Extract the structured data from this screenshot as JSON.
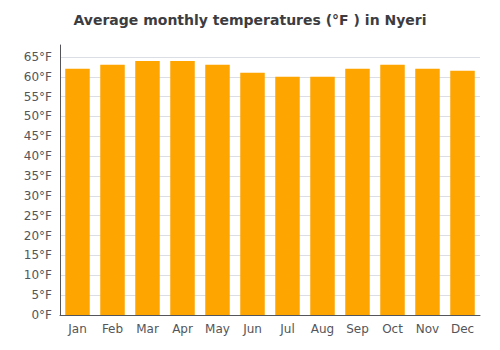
{
  "chart_data": {
    "type": "bar",
    "title": "Average monthly temperatures (°F ) in Nyeri",
    "categories": [
      "Jan",
      "Feb",
      "Mar",
      "Apr",
      "May",
      "Jun",
      "Jul",
      "Aug",
      "Sep",
      "Oct",
      "Nov",
      "Dec"
    ],
    "values": [
      62,
      63,
      64,
      64,
      63,
      61,
      60,
      60,
      62,
      63,
      62,
      61.5
    ],
    "color": "#FFA500",
    "ylim": [
      0,
      68
    ],
    "yticks": [
      {
        "value": 0,
        "label": "0°F"
      },
      {
        "value": 5,
        "label": "5°F"
      },
      {
        "value": 10,
        "label": "10°F"
      },
      {
        "value": 15,
        "label": "15°F"
      },
      {
        "value": 20,
        "label": "20°F"
      },
      {
        "value": 25,
        "label": "25°F"
      },
      {
        "value": 30,
        "label": "30°F"
      },
      {
        "value": 35,
        "label": "35°F"
      },
      {
        "value": 40,
        "label": "40°F"
      },
      {
        "value": 45,
        "label": "45°F"
      },
      {
        "value": 50,
        "label": "50°F"
      },
      {
        "value": 55,
        "label": "55°F"
      },
      {
        "value": 60,
        "label": "60°F"
      },
      {
        "value": 65,
        "label": "65°F"
      }
    ],
    "grid": true
  }
}
